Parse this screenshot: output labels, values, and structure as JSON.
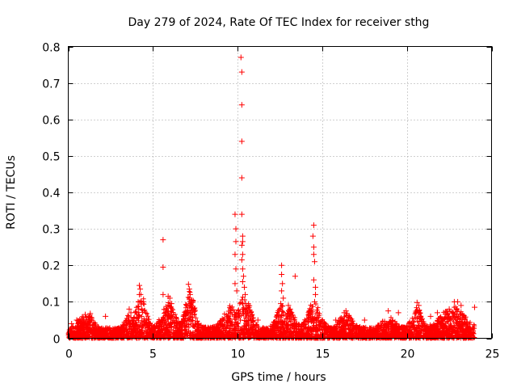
{
  "chart_data": {
    "type": "scatter",
    "title": "Day 279 of 2024, Rate Of TEC Index for receiver sthg",
    "xlabel": "GPS time / hours",
    "ylabel": "ROTI / TECUs",
    "xlim": [
      0,
      25
    ],
    "ylim": [
      0,
      0.8
    ],
    "xticks": [
      "0",
      "5",
      "10",
      "15",
      "20",
      "25"
    ],
    "xtick_values": [
      0,
      5,
      10,
      15,
      20,
      25
    ],
    "yticks": [
      "0",
      "0.1",
      "0.2",
      "0.3",
      "0.4",
      "0.5",
      "0.6",
      "0.7",
      "0.8"
    ],
    "ytick_values": [
      0,
      0.1,
      0.2,
      0.3,
      0.4,
      0.5,
      0.6,
      0.7,
      0.8
    ],
    "grid": true,
    "marker": "plus",
    "color": "#ff0000",
    "series": [
      {
        "name": "ROTI",
        "points": [
          [
            10.2,
            0.77
          ],
          [
            10.25,
            0.73
          ],
          [
            10.25,
            0.64
          ],
          [
            10.25,
            0.54
          ],
          [
            10.25,
            0.44
          ],
          [
            10.25,
            0.34
          ],
          [
            9.85,
            0.34
          ],
          [
            9.9,
            0.3
          ],
          [
            9.9,
            0.265
          ],
          [
            9.85,
            0.23
          ],
          [
            9.9,
            0.19
          ],
          [
            9.85,
            0.15
          ],
          [
            9.95,
            0.13
          ],
          [
            10.3,
            0.28
          ],
          [
            10.3,
            0.265
          ],
          [
            10.25,
            0.255
          ],
          [
            10.3,
            0.23
          ],
          [
            10.25,
            0.215
          ],
          [
            10.3,
            0.19
          ],
          [
            10.35,
            0.17
          ],
          [
            10.3,
            0.155
          ],
          [
            10.4,
            0.14
          ],
          [
            10.45,
            0.12
          ],
          [
            5.6,
            0.27
          ],
          [
            5.6,
            0.195
          ],
          [
            5.6,
            0.12
          ],
          [
            14.5,
            0.31
          ],
          [
            14.45,
            0.28
          ],
          [
            14.5,
            0.25
          ],
          [
            14.5,
            0.23
          ],
          [
            14.55,
            0.21
          ],
          [
            14.5,
            0.16
          ],
          [
            14.6,
            0.14
          ],
          [
            14.6,
            0.12
          ],
          [
            14.55,
            0.1
          ],
          [
            13.4,
            0.17
          ],
          [
            12.6,
            0.2
          ],
          [
            12.6,
            0.175
          ],
          [
            12.65,
            0.15
          ],
          [
            12.6,
            0.13
          ],
          [
            12.7,
            0.11
          ],
          [
            12.55,
            0.095
          ],
          [
            4.2,
            0.145
          ],
          [
            4.25,
            0.135
          ],
          [
            4.2,
            0.12
          ],
          [
            4.3,
            0.1
          ],
          [
            7.1,
            0.148
          ],
          [
            7.15,
            0.135
          ],
          [
            7.2,
            0.12
          ],
          [
            7.3,
            0.105
          ],
          [
            5.9,
            0.115
          ],
          [
            6.0,
            0.11
          ],
          [
            6.1,
            0.095
          ],
          [
            3.6,
            0.08
          ],
          [
            3.7,
            0.07
          ],
          [
            1.3,
            0.068
          ],
          [
            1.0,
            0.065
          ],
          [
            2.2,
            0.06
          ],
          [
            13.0,
            0.09
          ],
          [
            13.1,
            0.08
          ],
          [
            16.4,
            0.075
          ],
          [
            16.3,
            0.07
          ],
          [
            18.9,
            0.075
          ],
          [
            19.5,
            0.07
          ],
          [
            20.6,
            0.098
          ],
          [
            20.7,
            0.09
          ],
          [
            21.4,
            0.06
          ],
          [
            21.8,
            0.07
          ],
          [
            22.5,
            0.08
          ],
          [
            22.8,
            0.1
          ],
          [
            23.0,
            0.1
          ],
          [
            23.2,
            0.09
          ],
          [
            24.0,
            0.085
          ],
          [
            0.2,
            0.04
          ],
          [
            0.5,
            0.05
          ],
          [
            8.1,
            0.03
          ],
          [
            9.0,
            0.04
          ],
          [
            11.2,
            0.05
          ],
          [
            15.8,
            0.05
          ],
          [
            17.5,
            0.05
          ]
        ]
      }
    ],
    "baseline_band": {
      "x_range": [
        0,
        24
      ],
      "bursts": [
        {
          "center": 0.9,
          "width": 0.5,
          "peak": 0.06
        },
        {
          "center": 1.3,
          "width": 0.3,
          "peak": 0.065
        },
        {
          "center": 3.6,
          "width": 0.3,
          "peak": 0.07
        },
        {
          "center": 4.3,
          "width": 0.4,
          "peak": 0.12
        },
        {
          "center": 5.9,
          "width": 0.5,
          "peak": 0.1
        },
        {
          "center": 7.2,
          "width": 0.4,
          "peak": 0.13
        },
        {
          "center": 9.6,
          "width": 0.6,
          "peak": 0.09
        },
        {
          "center": 10.4,
          "width": 0.5,
          "peak": 0.12
        },
        {
          "center": 12.6,
          "width": 0.4,
          "peak": 0.09
        },
        {
          "center": 13.1,
          "width": 0.4,
          "peak": 0.08
        },
        {
          "center": 14.5,
          "width": 0.5,
          "peak": 0.1
        },
        {
          "center": 16.4,
          "width": 0.5,
          "peak": 0.07
        },
        {
          "center": 18.9,
          "width": 0.5,
          "peak": 0.06
        },
        {
          "center": 20.6,
          "width": 0.4,
          "peak": 0.085
        },
        {
          "center": 22.7,
          "width": 0.9,
          "peak": 0.09
        }
      ],
      "floor": 0.03
    }
  }
}
